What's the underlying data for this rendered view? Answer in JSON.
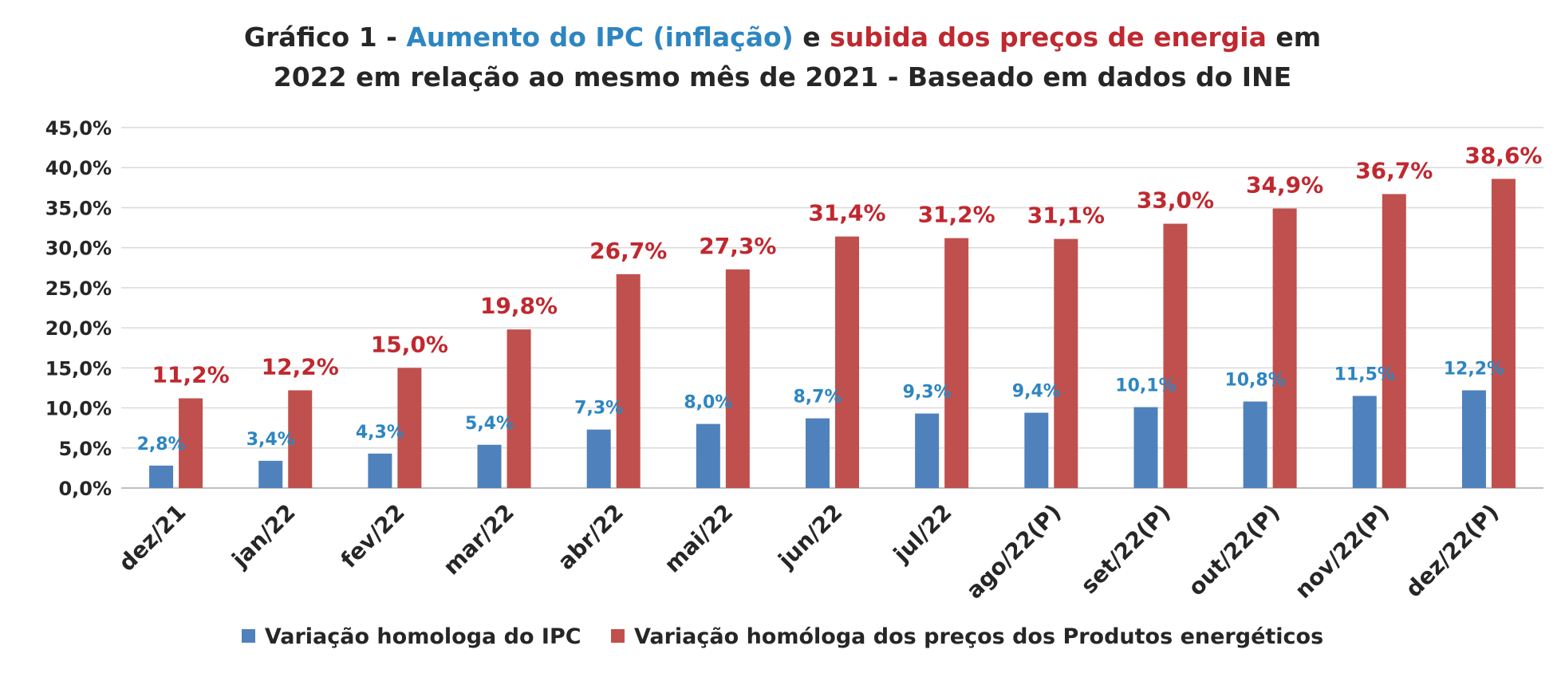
{
  "title": {
    "prefix": "Gráfico 1 - ",
    "part_blue": "Aumento do IPC (inflação)",
    "middle": " e ",
    "part_red": "subida dos preços de energia",
    "suffix_line1": " em",
    "line2": "2022 em relação ao mesmo mês de 2021 - Baseado em dados do INE"
  },
  "colors": {
    "ipc": "#4f81bd",
    "energy": "#c0504d",
    "ipc_label": "#2e86c1",
    "energy_label": "#c0282f"
  },
  "chart_data": {
    "type": "bar",
    "categories": [
      "dez/21",
      "jan/22",
      "fev/22",
      "mar/22",
      "abr/22",
      "mai/22",
      "jun/22",
      "jul/22",
      "ago/22(P)",
      "set/22(P)",
      "out/22(P)",
      "nov/22(P)",
      "dez/22(P)"
    ],
    "series": [
      {
        "name": "Variação homologa do IPC",
        "values": [
          2.8,
          3.4,
          4.3,
          5.4,
          7.3,
          8.0,
          8.7,
          9.3,
          9.4,
          10.1,
          10.8,
          11.5,
          12.2
        ],
        "labels": [
          "2,8%",
          "3,4%",
          "4,3%",
          "5,4%",
          "7,3%",
          "8,0%",
          "8,7%",
          "9,3%",
          "9,4%",
          "10,1%",
          "10,8%",
          "11,5%",
          "12,2%"
        ]
      },
      {
        "name": "Variação homóloga dos preços dos Produtos energéticos",
        "values": [
          11.2,
          12.2,
          15.0,
          19.8,
          26.7,
          27.3,
          31.4,
          31.2,
          31.1,
          33.0,
          34.9,
          36.7,
          38.6
        ],
        "labels": [
          "11,2%",
          "12,2%",
          "15,0%",
          "19,8%",
          "26,7%",
          "27,3%",
          "31,4%",
          "31,2%",
          "31,1%",
          "33,0%",
          "34,9%",
          "36,7%",
          "38,6%"
        ]
      }
    ],
    "ylim": [
      0,
      45
    ],
    "yticks": [
      "0,0%",
      "5,0%",
      "10,0%",
      "15,0%",
      "20,0%",
      "25,0%",
      "30,0%",
      "35,0%",
      "40,0%",
      "45,0%"
    ],
    "grid": true,
    "legend_position": "bottom"
  }
}
